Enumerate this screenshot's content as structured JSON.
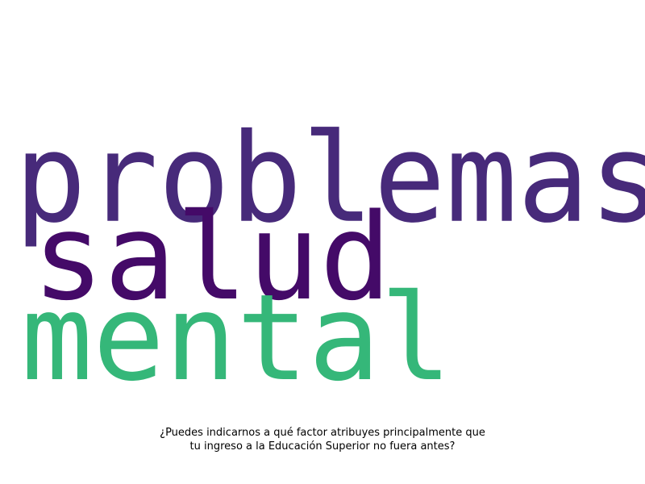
{
  "wordcloud": {
    "words": [
      {
        "text": "problemas",
        "color": "#472a7a"
      },
      {
        "text": "salud",
        "color": "#440a68"
      },
      {
        "text": "mental",
        "color": "#35b779"
      }
    ]
  },
  "caption": {
    "line1": "¿Puedes indicarnos a qué factor atribuyes principalmente que",
    "line2": "tu ingreso a la Educación Superior no fuera antes?"
  }
}
